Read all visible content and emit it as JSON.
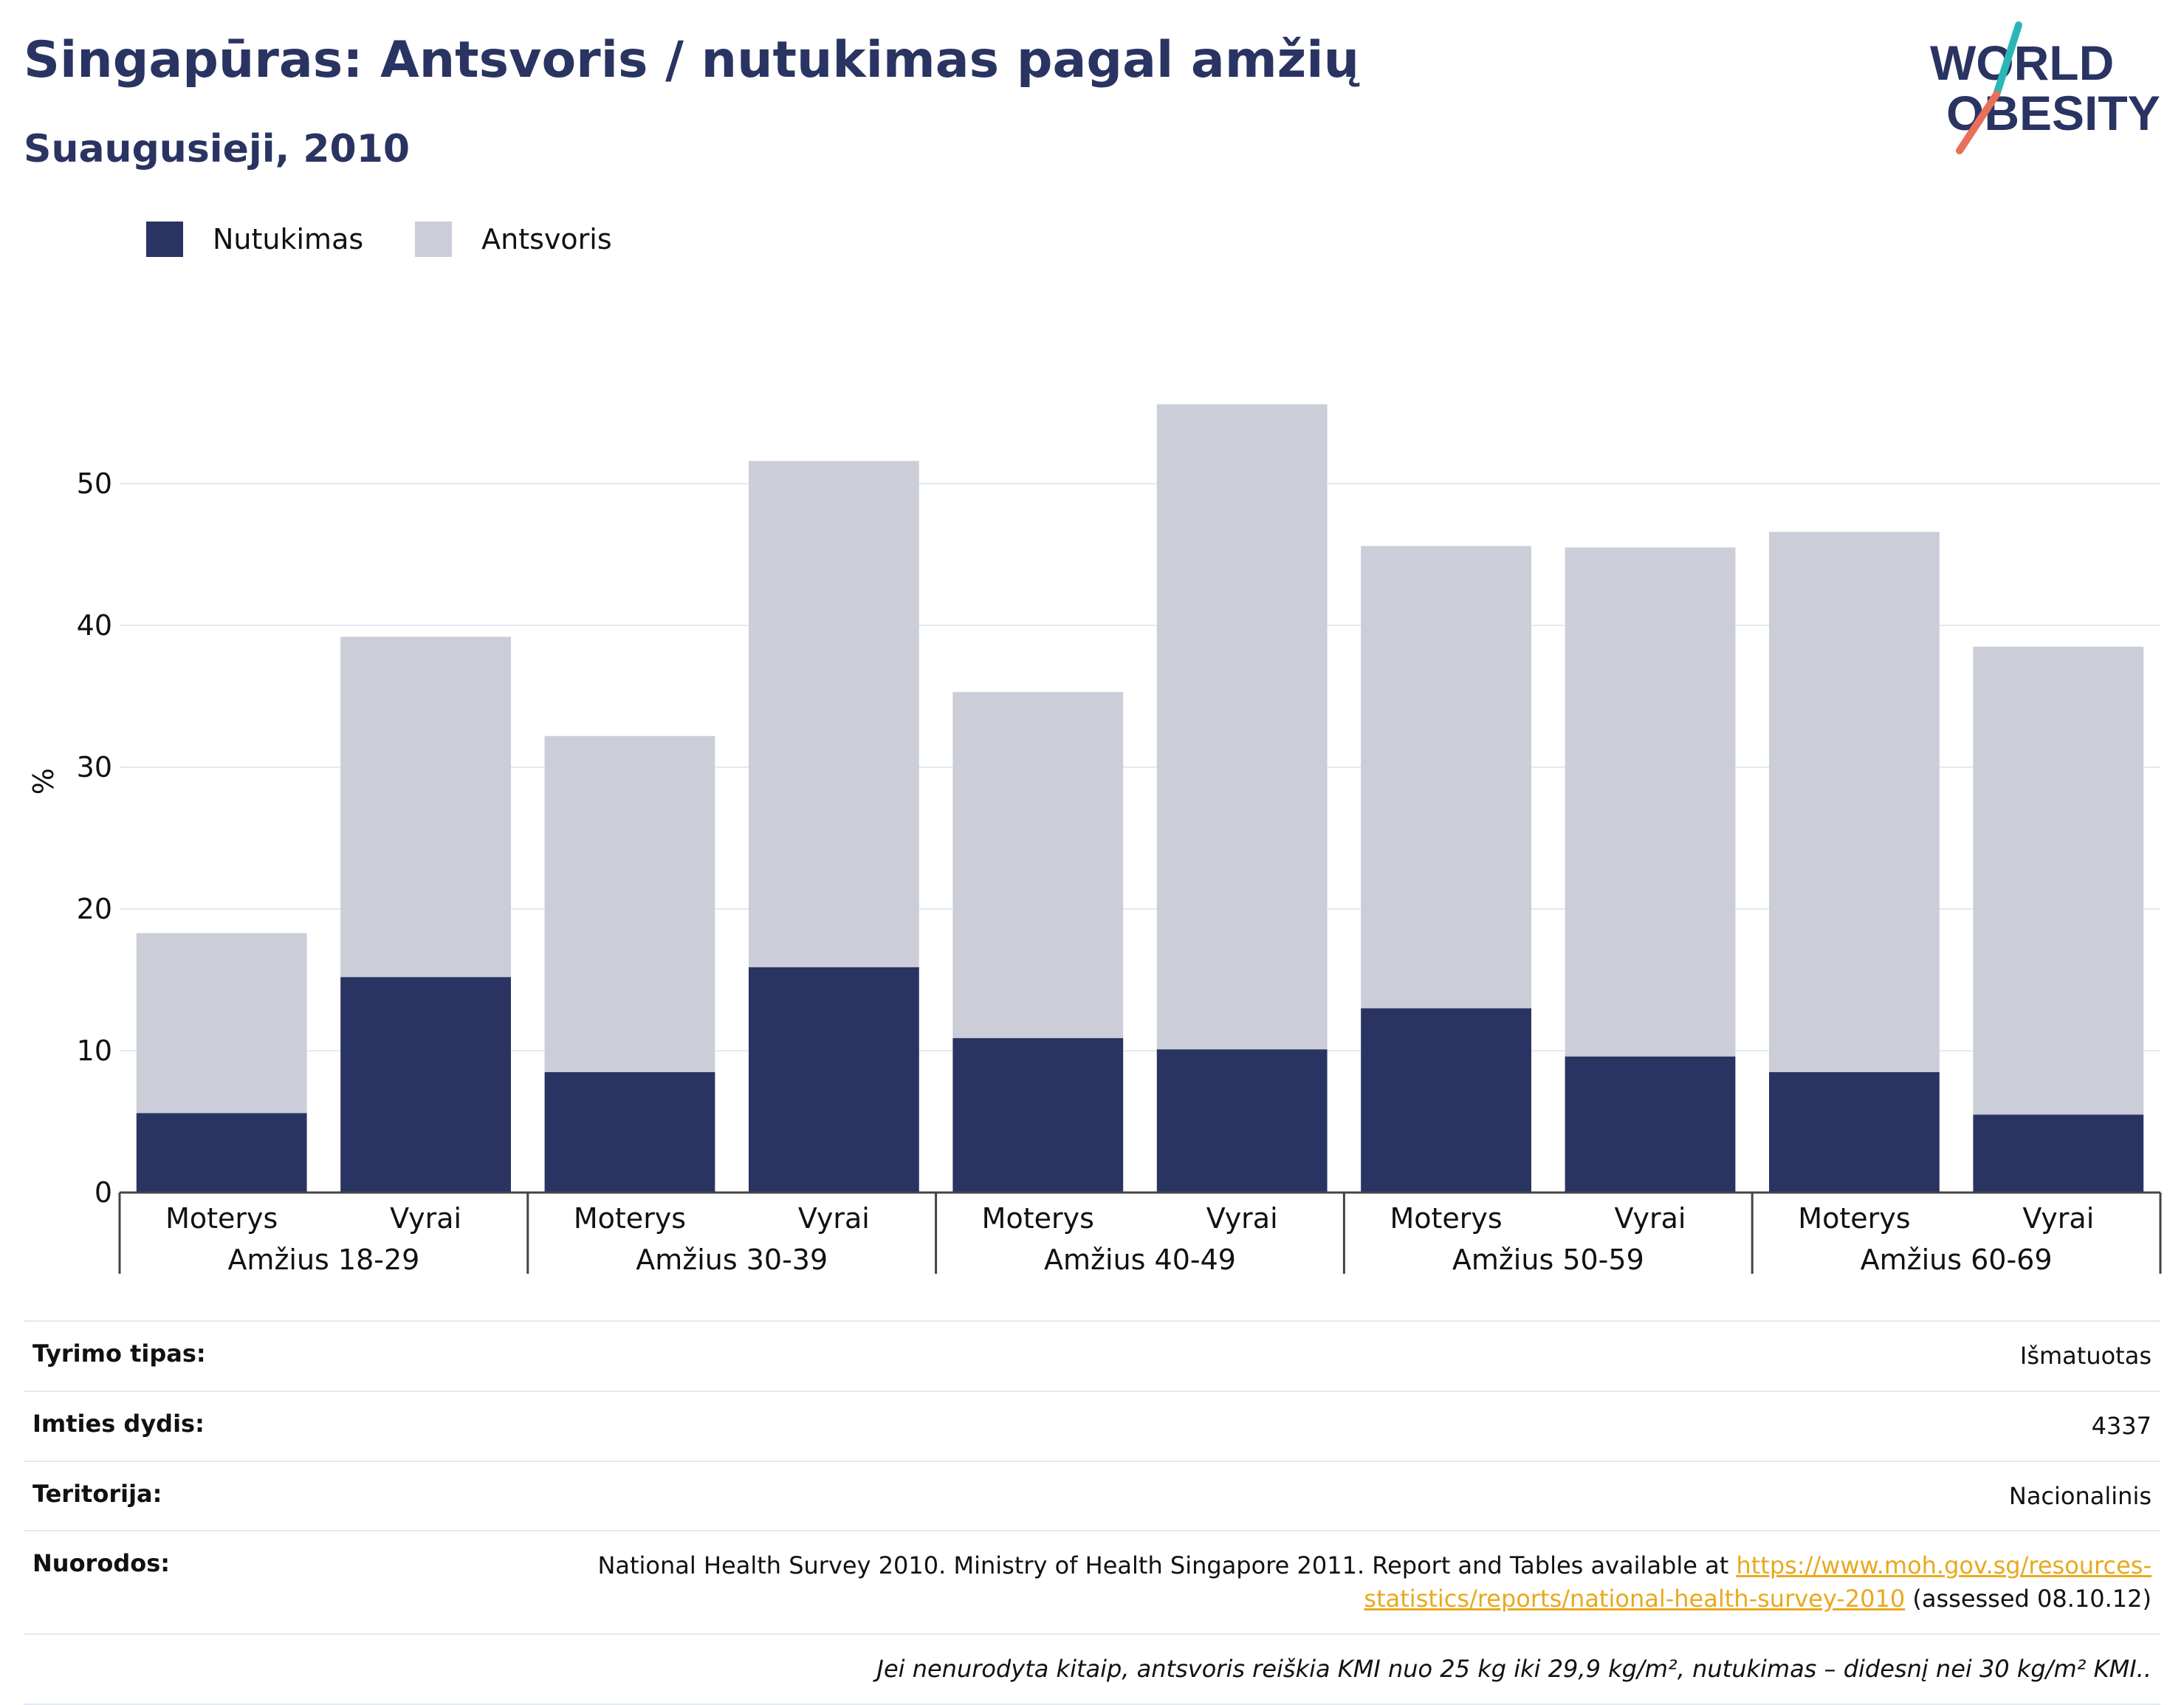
{
  "header": {
    "title": "Singapūras: Antsvoris / nutukimas pagal amžių",
    "subtitle": "Suaugusieji, 2010"
  },
  "logo": {
    "line1": "WORLD",
    "line2": "OBESITY"
  },
  "colors": {
    "obesity": "#2a3462",
    "overweight": "#cbcdd8",
    "title": "#2a3462",
    "link": "#e8a91e",
    "logo_teal": "#2bb6b6",
    "logo_coral": "#e8705a"
  },
  "chart_data": {
    "type": "bar",
    "stacked": true,
    "ylabel": "%",
    "ylim": [
      0,
      58
    ],
    "yticks": [
      0,
      10,
      20,
      30,
      40,
      50
    ],
    "grid": true,
    "legend_position": "top-left",
    "groups": [
      "Amžius 18-29",
      "Amžius 30-39",
      "Amžius 40-49",
      "Amžius 50-59",
      "Amžius 60-69"
    ],
    "categories": [
      "Moterys",
      "Vyrai",
      "Moterys",
      "Vyrai",
      "Moterys",
      "Vyrai",
      "Moterys",
      "Vyrai",
      "Moterys",
      "Vyrai"
    ],
    "series": [
      {
        "name": "Nutukimas",
        "values": [
          5.6,
          15.2,
          8.5,
          15.9,
          10.9,
          10.1,
          13.0,
          9.6,
          8.5,
          5.5
        ]
      },
      {
        "name": "Antsvoris",
        "values": [
          12.7,
          24.0,
          23.7,
          35.7,
          24.4,
          45.5,
          32.6,
          35.9,
          38.1,
          33.0
        ]
      }
    ]
  },
  "info": {
    "survey_type": {
      "label": "Tyrimo tipas:",
      "value": "Išmatuotas"
    },
    "sample_size": {
      "label": "Imties dydis:",
      "value": "4337"
    },
    "territory": {
      "label": "Teritorija:",
      "value": "Nacionalinis"
    },
    "references": {
      "label": "Nuorodos:",
      "text": "National Health Survey 2010. Ministry of Health Singapore 2011. Report and Tables available at ",
      "link": "https://www.moh.gov.sg/resources-statistics/reports/national-health-survey-2010",
      "suffix": " (assessed 08.10.12)"
    },
    "note": "Jei nenurodyta kitaip, antsvoris reiškia KMI nuo 25 kg iki 29,9 kg/m², nutukimas – didesnį nei 30 kg/m² KMI.."
  }
}
